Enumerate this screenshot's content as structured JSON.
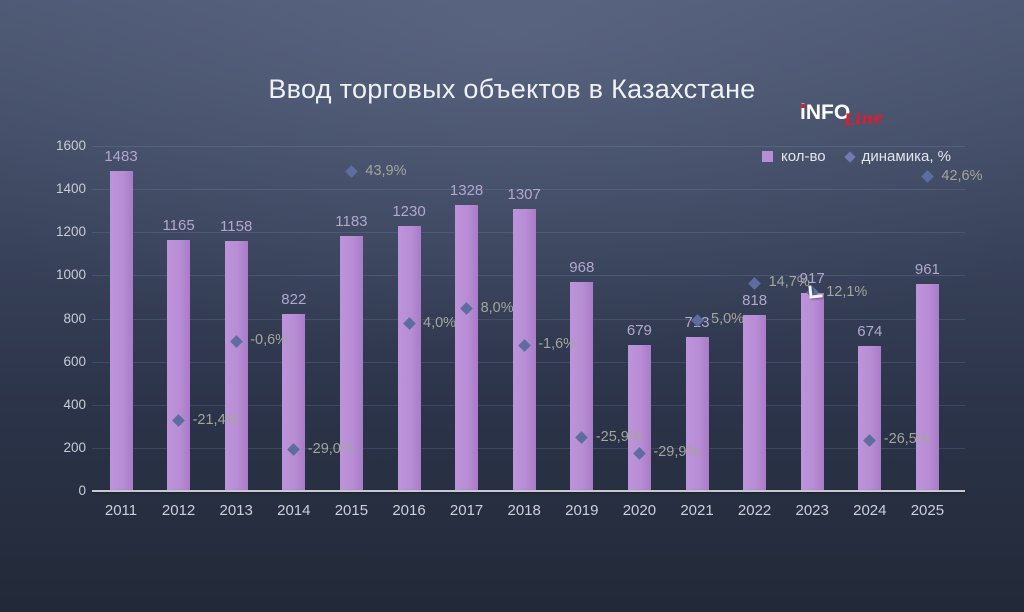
{
  "title": "Ввод торговых объектов в Казахстане",
  "logo": {
    "info": "iNFO",
    "line": "Line"
  },
  "legend": {
    "items": [
      {
        "label": "кол-во",
        "marker": "square-icon"
      },
      {
        "label": "динамика, %",
        "marker": "diamond-icon"
      }
    ]
  },
  "colors": {
    "bar": "#b78dd5",
    "diamond_marker": "#5e6da0",
    "value_label": "#b3a7cf",
    "pct_label": "#a4a59b",
    "axis_text": "#c8ccd5",
    "title_text": "#eef1f6",
    "logo_red": "#e11a2c",
    "background_top": "#4b5671",
    "background_bottom": "#222938"
  },
  "chart_data": {
    "type": "bar",
    "title": "Ввод торговых объектов в Казахстане",
    "categories": [
      "2011",
      "2012",
      "2013",
      "2014",
      "2015",
      "2016",
      "2017",
      "2018",
      "2019",
      "2020",
      "2021",
      "2022",
      "2023",
      "2024",
      "2025"
    ],
    "series": [
      {
        "name": "кол-во",
        "type": "bar",
        "values": [
          1483,
          1165,
          1158,
          822,
          1183,
          1230,
          1328,
          1307,
          968,
          679,
          713,
          818,
          917,
          674,
          961
        ]
      },
      {
        "name": "динамика, %",
        "type": "scatter",
        "values": [
          null,
          -21.4,
          -0.6,
          -29.0,
          43.9,
          4.0,
          8.0,
          -1.6,
          -25.9,
          -29.9,
          5.0,
          14.7,
          12.1,
          -26.5,
          42.6
        ],
        "labels": [
          "",
          "-21,4%",
          "-0,6%",
          "-29,0%",
          "43,9%",
          "4,0%",
          "8,0%",
          "-1,6%",
          "-25,9%",
          "-29,9%",
          "5,0%",
          "14,7%",
          "12,1%",
          "-26,5%",
          "42,6%"
        ]
      }
    ],
    "y_axis": {
      "min": 0,
      "max": 1600,
      "step": 200,
      "ticks": [
        "0",
        "200",
        "400",
        "600",
        "800",
        "1000",
        "1200",
        "1400",
        "1600"
      ]
    },
    "pct_axis": {
      "min": -39.8,
      "max": 50.6
    },
    "grid": true,
    "legend_position": "top-right"
  }
}
